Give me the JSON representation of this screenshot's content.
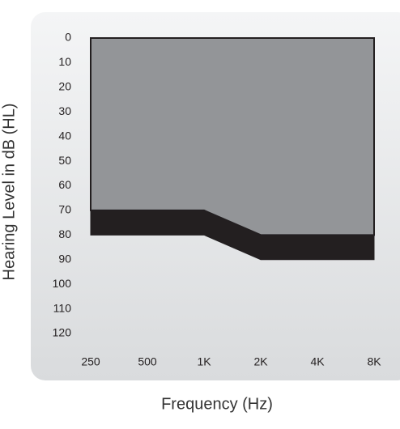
{
  "chart_data": {
    "type": "area",
    "stacked": true,
    "y_label": "Hearing Level in dB (HL)",
    "x_label": "Frequency (Hz)",
    "categories": [
      "250",
      "500",
      "1K",
      "2K",
      "4K",
      "8K"
    ],
    "series": [
      {
        "color": "#939598",
        "values": [
          70,
          70,
          70,
          80,
          80,
          80
        ]
      },
      {
        "color": "#231f20",
        "values": [
          10,
          10,
          10,
          10,
          10,
          10
        ]
      }
    ],
    "ylim": [
      0,
      120
    ],
    "yticks": [
      0,
      10,
      20,
      30,
      40,
      50,
      60,
      70,
      80,
      90,
      100,
      110,
      120
    ],
    "y_inverted": true
  }
}
